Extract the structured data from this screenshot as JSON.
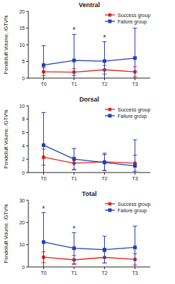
{
  "chart_data": [
    {
      "type": "line",
      "title": "Ventral",
      "y_label": "Pendelluft Volume, /GTV%",
      "categories": [
        "T0",
        "T1",
        "T2",
        "T3"
      ],
      "series": [
        {
          "name": "Success group",
          "color": "#e3241c",
          "marker": "circle",
          "values": [
            1.9,
            1.8,
            2.5,
            1.9
          ],
          "errors": [
            1.2,
            1.0,
            1.3,
            1.5
          ]
        },
        {
          "name": "Failure group",
          "color": "#1f3fbf",
          "marker": "square",
          "values": [
            3.9,
            5.3,
            5.1,
            6.0
          ],
          "errors": [
            5.8,
            7.8,
            5.8,
            9.0
          ]
        }
      ],
      "ylim": [
        0,
        20
      ],
      "yticks": [
        0,
        5,
        10,
        15,
        20
      ],
      "legend": "upper right",
      "annotations": [
        {
          "text": "*",
          "x": "T1"
        },
        {
          "text": "*",
          "x": "T2"
        }
      ]
    },
    {
      "type": "line",
      "title": "Dorsal",
      "y_label": "Pendelluft Volume, /GTV%",
      "categories": [
        "T0",
        "T1",
        "T2",
        "T3"
      ],
      "series": [
        {
          "name": "Success group",
          "color": "#e3241c",
          "marker": "circle",
          "values": [
            2.3,
            1.4,
            1.6,
            1.4
          ],
          "errors": [
            1.2,
            0.9,
            1.3,
            1.2
          ]
        },
        {
          "name": "Failure group",
          "color": "#1f3fbf",
          "marker": "square",
          "values": [
            4.1,
            2.0,
            1.5,
            1.0
          ],
          "errors": [
            4.9,
            1.6,
            1.2,
            3.9
          ]
        }
      ],
      "ylim": [
        0,
        10
      ],
      "yticks": [
        0,
        2,
        4,
        6,
        8,
        10
      ],
      "legend": "upper right"
    },
    {
      "type": "line",
      "title": "Total",
      "y_label": "Pendelluft Volume, /GTV%",
      "categories": [
        "T0",
        "T1",
        "T2",
        "T3"
      ],
      "series": [
        {
          "name": "Success group",
          "color": "#e3241c",
          "marker": "circle",
          "values": [
            4.4,
            3.2,
            4.3,
            3.4
          ],
          "errors": [
            2.4,
            2.0,
            2.5,
            2.5
          ]
        },
        {
          "name": "Failure group",
          "color": "#1f3fbf",
          "marker": "square",
          "values": [
            11.2,
            8.4,
            7.8,
            8.8
          ],
          "errors": [
            13.2,
            7.0,
            6.0,
            9.6
          ]
        }
      ],
      "ylim": [
        0,
        30
      ],
      "yticks": [
        0,
        10,
        20,
        30
      ],
      "legend": "upper right",
      "annotations": [
        {
          "text": "*",
          "x": "T0"
        },
        {
          "text": "*",
          "x": "T1"
        }
      ]
    }
  ]
}
